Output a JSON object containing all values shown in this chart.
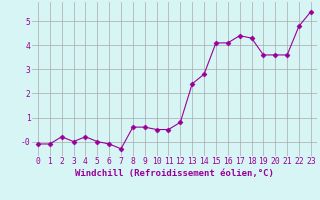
{
  "x": [
    0,
    1,
    2,
    3,
    4,
    5,
    6,
    7,
    8,
    9,
    10,
    11,
    12,
    13,
    14,
    15,
    16,
    17,
    18,
    19,
    20,
    21,
    22,
    23
  ],
  "y": [
    -0.1,
    -0.1,
    0.2,
    0.0,
    0.2,
    0.0,
    -0.1,
    -0.3,
    0.6,
    0.6,
    0.5,
    0.5,
    0.8,
    2.4,
    2.8,
    4.1,
    4.1,
    4.4,
    4.3,
    3.6,
    3.6,
    3.6,
    4.8,
    5.4
  ],
  "line_color": "#990099",
  "marker": "D",
  "marker_size": 2.5,
  "bg_color": "#d8f5f5",
  "grid_color": "#aaaaaa",
  "xlabel": "Windchill (Refroidissement éolien,°C)",
  "xlabel_fontsize": 6.5,
  "tick_fontsize": 5.8,
  "ylim": [
    -0.6,
    5.8
  ],
  "xlim": [
    -0.5,
    23.5
  ],
  "ytick_labels": [
    "-0",
    "1",
    "2",
    "3",
    "4",
    "5"
  ],
  "ytick_vals": [
    0,
    1,
    2,
    3,
    4,
    5
  ]
}
